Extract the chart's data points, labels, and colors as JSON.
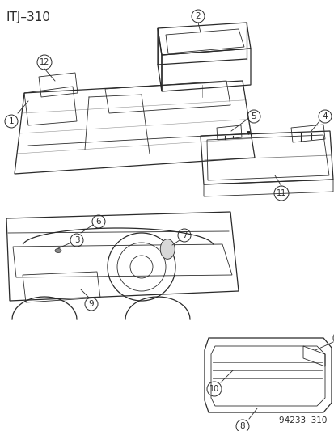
{
  "title": "ITJ–310",
  "footer": "94233  310",
  "bg_color": "#ffffff",
  "line_color": "#2a2a2a",
  "title_fontsize": 11,
  "footer_fontsize": 7.5
}
